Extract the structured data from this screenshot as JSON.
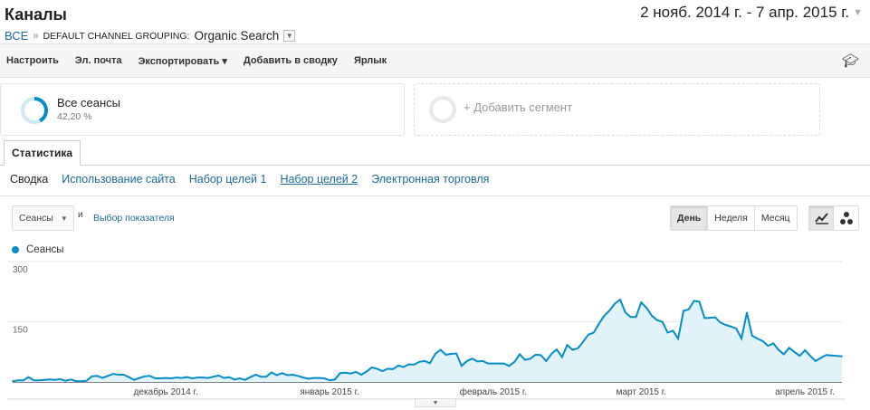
{
  "header": {
    "title": "Каналы",
    "date_range": "2 нояб. 2014 г. - 7 апр. 2015 г."
  },
  "breadcrumb": {
    "all": "ВСЕ",
    "separator": "»",
    "grouping": "DEFAULT CHANNEL GROUPING:",
    "value": "Organic Search"
  },
  "toolbar": {
    "items": [
      "Настроить",
      "Эл. почта",
      "Экспортировать ▾",
      "Добавить в сводку",
      "Ярлык"
    ],
    "icon": "graduation-cap-icon"
  },
  "segments": {
    "primary": {
      "name": "Все сеансы",
      "percent": "42,20 %",
      "fraction": 0.422
    },
    "add": "+ Добавить сегмент"
  },
  "tab": "Статистика",
  "subtabs": [
    "Сводка",
    "Использование сайта",
    "Набор целей 1",
    "Набор целей 2",
    "Электронная торговля"
  ],
  "controls": {
    "metric": "Сеансы",
    "and": "и",
    "pick_metric": "Выбор показателя",
    "periods": [
      "День",
      "Неделя",
      "Месяц"
    ],
    "active_period": "День"
  },
  "colors": {
    "series": "#058dc7",
    "fill": "#e1f2f9",
    "link": "#1a6a9a"
  },
  "chart_data": {
    "type": "area",
    "legend": "Сеансы",
    "legend_position": "top-left",
    "start_date": "2014-11-02",
    "end_date": "2015-04-07",
    "ylim": [
      0,
      300
    ],
    "y_ticks": [
      "300",
      "150"
    ],
    "grid": true,
    "x_tick_labels": [
      {
        "date": "2014-12-01",
        "label": "декабрь 2014 г."
      },
      {
        "date": "2015-01-01",
        "label": "январь 2015 г."
      },
      {
        "date": "2015-02-01",
        "label": "февраль 2015 г."
      },
      {
        "date": "2015-03-01",
        "label": "март 2015 г."
      },
      {
        "date": "2015-04-01",
        "label": "апрель 2015 г."
      }
    ],
    "daily_values": [
      2,
      4,
      4,
      12,
      4,
      4,
      5,
      6,
      5,
      7,
      3,
      6,
      2,
      2,
      3,
      14,
      15,
      10,
      15,
      20,
      18,
      18,
      12,
      5,
      10,
      14,
      15,
      9,
      9,
      10,
      9,
      11,
      10,
      12,
      9,
      11,
      11,
      10,
      13,
      16,
      10,
      12,
      6,
      9,
      5,
      12,
      18,
      13,
      13,
      24,
      17,
      22,
      17,
      18,
      15,
      11,
      8,
      10,
      10,
      9,
      4,
      6,
      22,
      23,
      21,
      25,
      18,
      26,
      36,
      33,
      27,
      33,
      32,
      41,
      37,
      44,
      43,
      50,
      52,
      47,
      70,
      80,
      68,
      70,
      71,
      40,
      52,
      58,
      51,
      52,
      46,
      46,
      46,
      46,
      40,
      50,
      69,
      55,
      58,
      68,
      67,
      52,
      70,
      81,
      62,
      92,
      80,
      84,
      100,
      118,
      123,
      145,
      165,
      178,
      195,
      205,
      173,
      162,
      162,
      198,
      185,
      165,
      154,
      150,
      123,
      128,
      108,
      177,
      181,
      202,
      200,
      159,
      160,
      161,
      148,
      142,
      138,
      133,
      108,
      173,
      115,
      108,
      102,
      90,
      96,
      80,
      69,
      85,
      75,
      65,
      79,
      65,
      52,
      60,
      67,
      66,
      65,
      64
    ]
  }
}
